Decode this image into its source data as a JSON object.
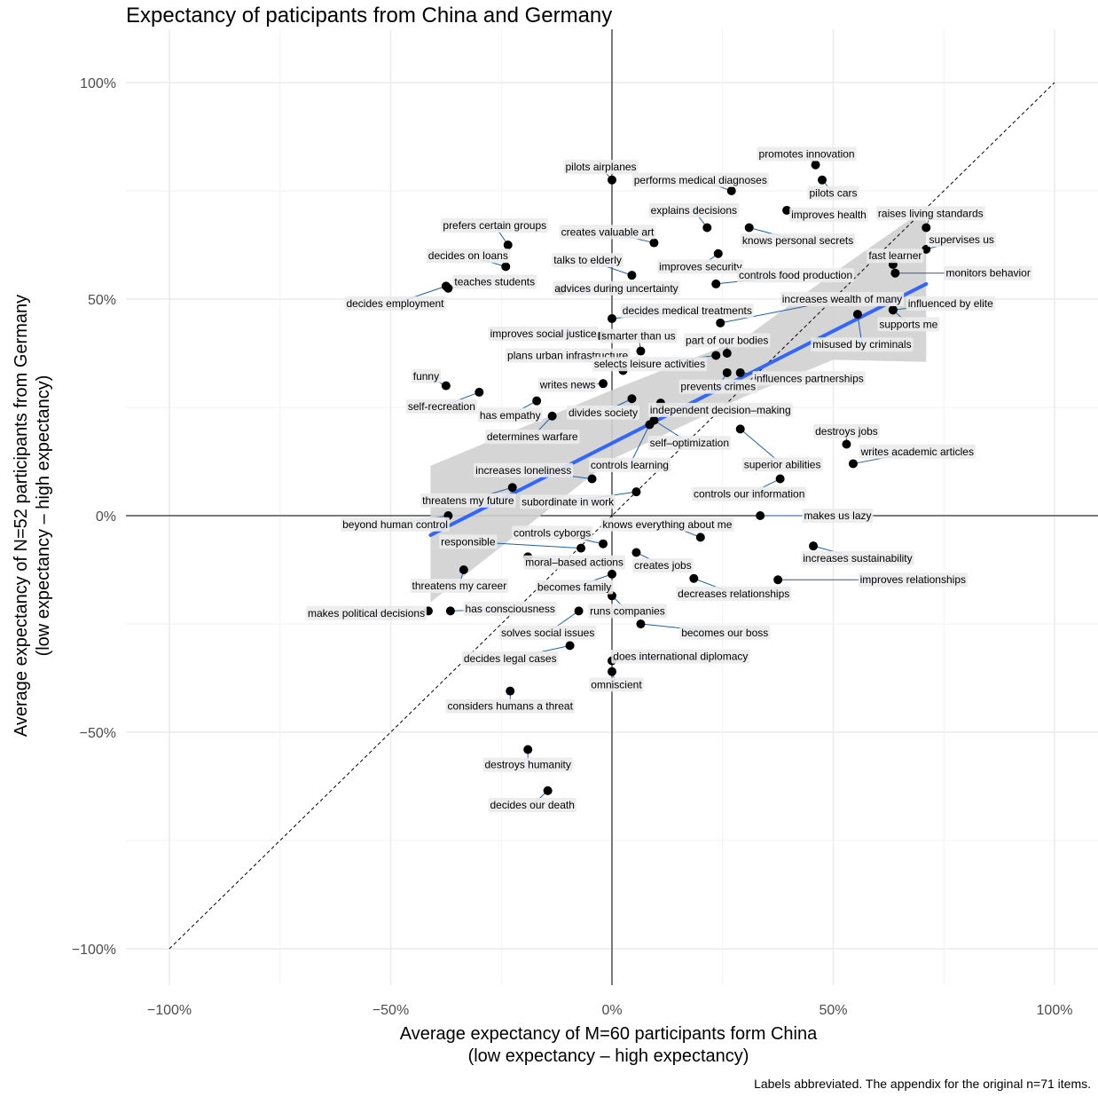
{
  "title": "Expectancy of paticipants from China and Germany",
  "footnote": "Labels abbreviated. The appendix for the original n=71 items.",
  "chart_data": {
    "type": "scatter",
    "xlabel_line1": "Average expectancy of M=60 participants form China",
    "xlabel_line2": "(low expectancy – high expectancy)",
    "ylabel_line1": "Average expectancy of N=52 participants from Germany",
    "ylabel_line2": "(low expectancy – high expectancy)",
    "xlim": [
      -1.1,
      1.1
    ],
    "ylim": [
      -1.1,
      1.05
    ],
    "x_ticks": [
      {
        "v": -1,
        "label": "−100%"
      },
      {
        "v": -0.5,
        "label": "−50%"
      },
      {
        "v": 0,
        "label": "0%"
      },
      {
        "v": 0.5,
        "label": "50%"
      },
      {
        "v": 1,
        "label": "100%"
      }
    ],
    "y_ticks": [
      {
        "v": 1,
        "label": "100%"
      },
      {
        "v": 0.5,
        "label": "50%"
      },
      {
        "v": 0,
        "label": "0%"
      },
      {
        "v": -0.5,
        "label": "−50%"
      },
      {
        "v": -1,
        "label": "−100%"
      }
    ],
    "grid": true,
    "identity_line": [
      [
        -1,
        -1
      ],
      [
        1,
        1
      ]
    ],
    "fit_line": {
      "x0": -0.41,
      "y0": -0.045,
      "x1": 0.71,
      "y1": 0.535
    },
    "confidence_band": {
      "upper": [
        [
          -0.41,
          0.115
        ],
        [
          0.0,
          0.29
        ],
        [
          0.3,
          0.41
        ],
        [
          0.5,
          0.56
        ],
        [
          0.71,
          0.71
        ]
      ],
      "lower": [
        [
          -0.41,
          -0.2
        ],
        [
          0.0,
          0.13
        ],
        [
          0.3,
          0.275
        ],
        [
          0.5,
          0.36
        ],
        [
          0.71,
          0.355
        ]
      ]
    },
    "points": [
      {
        "label": "promotes innovation",
        "x": 0.46,
        "y": 0.81,
        "lx": 0.44,
        "ly": 0.835
      },
      {
        "label": "pilots cars",
        "x": 0.475,
        "y": 0.775,
        "lx": 0.5,
        "ly": 0.745
      },
      {
        "label": "pilots airplanes",
        "x": 0.0,
        "y": 0.775,
        "lx": -0.025,
        "ly": 0.805
      },
      {
        "label": "performs medical diagnoses",
        "x": 0.27,
        "y": 0.75,
        "lx": 0.2,
        "ly": 0.775
      },
      {
        "label": "improves health",
        "x": 0.395,
        "y": 0.705,
        "lx": 0.49,
        "ly": 0.695
      },
      {
        "label": "raises living standards",
        "x": 0.71,
        "y": 0.665,
        "lx": 0.72,
        "ly": 0.698
      },
      {
        "label": "explains decisions",
        "x": 0.215,
        "y": 0.665,
        "lx": 0.185,
        "ly": 0.705
      },
      {
        "label": "knows personal secrets",
        "x": 0.31,
        "y": 0.665,
        "lx": 0.42,
        "ly": 0.635
      },
      {
        "label": "supervises us",
        "x": 0.71,
        "y": 0.615,
        "lx": 0.79,
        "ly": 0.637
      },
      {
        "label": "prefers certain groups",
        "x": -0.235,
        "y": 0.625,
        "lx": -0.265,
        "ly": 0.67
      },
      {
        "label": "creates valuable art",
        "x": 0.095,
        "y": 0.63,
        "lx": -0.01,
        "ly": 0.655
      },
      {
        "label": "decides on loans",
        "x": -0.24,
        "y": 0.575,
        "lx": -0.325,
        "ly": 0.6
      },
      {
        "label": "talks to elderly",
        "x": 0.045,
        "y": 0.555,
        "lx": -0.055,
        "ly": 0.59
      },
      {
        "label": "improves security",
        "x": 0.24,
        "y": 0.605,
        "lx": 0.2,
        "ly": 0.575
      },
      {
        "label": "fast learner",
        "x": 0.635,
        "y": 0.58,
        "lx": 0.64,
        "ly": 0.6
      },
      {
        "label": "monitors behavior",
        "x": 0.64,
        "y": 0.56,
        "lx": 0.85,
        "ly": 0.56
      },
      {
        "label": "controls food production",
        "x": 0.235,
        "y": 0.535,
        "lx": 0.415,
        "ly": 0.555
      },
      {
        "label": "teaches students",
        "x": -0.37,
        "y": 0.525,
        "lx": -0.265,
        "ly": 0.54
      },
      {
        "label": "advices during uncertainty",
        "x": -0.115,
        "y": 0.52,
        "lx": 0.01,
        "ly": 0.525
      },
      {
        "label": "decides employment",
        "x": -0.375,
        "y": 0.53,
        "lx": -0.49,
        "ly": 0.49
      },
      {
        "label": "increases wealth of many",
        "x": 0.245,
        "y": 0.445,
        "lx": 0.52,
        "ly": 0.5
      },
      {
        "label": "decides medical treatments",
        "x": 0.0,
        "y": 0.455,
        "lx": 0.17,
        "ly": 0.473
      },
      {
        "label": "influenced by elite",
        "x": 0.635,
        "y": 0.475,
        "lx": 0.765,
        "ly": 0.49
      },
      {
        "label": "supports me",
        "x": 0.635,
        "y": 0.475,
        "lx": 0.67,
        "ly": 0.442
      },
      {
        "label": "misused by criminals",
        "x": 0.555,
        "y": 0.465,
        "lx": 0.565,
        "ly": 0.395
      },
      {
        "label": "improves social justice",
        "x": -0.025,
        "y": 0.415,
        "lx": -0.155,
        "ly": 0.42
      },
      {
        "label": "smarter than us",
        "x": 0.065,
        "y": 0.38,
        "lx": 0.06,
        "ly": 0.415
      },
      {
        "label": "part of our bodies",
        "x": 0.26,
        "y": 0.375,
        "lx": 0.26,
        "ly": 0.405
      },
      {
        "label": "plans urban infrastructure",
        "x": 0.025,
        "y": 0.335,
        "lx": -0.1,
        "ly": 0.37
      },
      {
        "label": "selects leisure activities",
        "x": 0.235,
        "y": 0.37,
        "lx": 0.085,
        "ly": 0.35
      },
      {
        "label": "influences partnerships",
        "x": 0.29,
        "y": 0.33,
        "lx": 0.445,
        "ly": 0.317
      },
      {
        "label": "prevents crimes",
        "x": 0.26,
        "y": 0.33,
        "lx": 0.24,
        "ly": 0.298
      },
      {
        "label": "funny",
        "x": -0.375,
        "y": 0.3,
        "lx": -0.42,
        "ly": 0.322
      },
      {
        "label": "writes news",
        "x": -0.02,
        "y": 0.305,
        "lx": -0.1,
        "ly": 0.302
      },
      {
        "label": "self-recreation",
        "x": -0.3,
        "y": 0.285,
        "lx": -0.385,
        "ly": 0.252
      },
      {
        "label": "has empathy",
        "x": -0.17,
        "y": 0.265,
        "lx": -0.23,
        "ly": 0.232
      },
      {
        "label": "divides society",
        "x": 0.045,
        "y": 0.27,
        "lx": -0.02,
        "ly": 0.238
      },
      {
        "label": "independent decision–making",
        "x": 0.11,
        "y": 0.26,
        "lx": 0.245,
        "ly": 0.244
      },
      {
        "label": "determines warfare",
        "x": -0.135,
        "y": 0.23,
        "lx": -0.18,
        "ly": 0.182
      },
      {
        "label": "self–optimization",
        "x": 0.095,
        "y": 0.22,
        "lx": 0.175,
        "ly": 0.168
      },
      {
        "label": "destroys jobs",
        "x": 0.53,
        "y": 0.165,
        "lx": 0.53,
        "ly": 0.195
      },
      {
        "label": "controls learning",
        "x": 0.085,
        "y": 0.21,
        "lx": 0.04,
        "ly": 0.117
      },
      {
        "label": "writes academic articles",
        "x": 0.545,
        "y": 0.12,
        "lx": 0.69,
        "ly": 0.148
      },
      {
        "label": "superior abilities",
        "x": 0.29,
        "y": 0.2,
        "lx": 0.385,
        "ly": 0.118
      },
      {
        "label": "increases loneliness",
        "x": -0.045,
        "y": 0.085,
        "lx": -0.2,
        "ly": 0.105
      },
      {
        "label": "controls our information",
        "x": 0.38,
        "y": 0.085,
        "lx": 0.31,
        "ly": 0.05
      },
      {
        "label": "threatens my future",
        "x": -0.225,
        "y": 0.065,
        "lx": -0.325,
        "ly": 0.035
      },
      {
        "label": "subordinate in work",
        "x": 0.055,
        "y": 0.055,
        "lx": -0.1,
        "ly": 0.032
      },
      {
        "label": "beyond human control",
        "x": -0.37,
        "y": 0.0,
        "lx": -0.49,
        "ly": -0.02
      },
      {
        "label": "makes us lazy",
        "x": 0.335,
        "y": 0.0,
        "lx": 0.51,
        "ly": 0.0
      },
      {
        "label": "knows everything about me",
        "x": 0.2,
        "y": -0.05,
        "lx": 0.125,
        "ly": -0.02
      },
      {
        "label": "responsible",
        "x": -0.07,
        "y": -0.075,
        "lx": -0.325,
        "ly": -0.06
      },
      {
        "label": "controls cyborgs",
        "x": -0.02,
        "y": -0.065,
        "lx": -0.135,
        "ly": -0.04
      },
      {
        "label": "increases sustainability",
        "x": 0.455,
        "y": -0.07,
        "lx": 0.555,
        "ly": -0.098
      },
      {
        "label": "moral–based actions",
        "x": -0.19,
        "y": -0.095,
        "lx": -0.085,
        "ly": -0.108
      },
      {
        "label": "creates jobs",
        "x": 0.055,
        "y": -0.085,
        "lx": 0.115,
        "ly": -0.115
      },
      {
        "label": "threatens my career",
        "x": -0.335,
        "y": -0.125,
        "lx": -0.345,
        "ly": -0.162
      },
      {
        "label": "becomes family",
        "x": 0.0,
        "y": -0.135,
        "lx": -0.085,
        "ly": -0.165
      },
      {
        "label": "decreases relationships",
        "x": 0.185,
        "y": -0.145,
        "lx": 0.275,
        "ly": -0.18
      },
      {
        "label": "improves relationships",
        "x": 0.375,
        "y": -0.148,
        "lx": 0.68,
        "ly": -0.148
      },
      {
        "label": "runs companies",
        "x": 0.0,
        "y": -0.185,
        "lx": 0.035,
        "ly": -0.22
      },
      {
        "label": "makes political decisions",
        "x": -0.415,
        "y": -0.22,
        "lx": -0.555,
        "ly": -0.225
      },
      {
        "label": "has consciousness",
        "x": -0.365,
        "y": -0.22,
        "lx": -0.23,
        "ly": -0.215
      },
      {
        "label": "solves social issues",
        "x": -0.075,
        "y": -0.22,
        "lx": -0.145,
        "ly": -0.27
      },
      {
        "label": "becomes our boss",
        "x": 0.065,
        "y": -0.25,
        "lx": 0.255,
        "ly": -0.27
      },
      {
        "label": "decides legal cases",
        "x": -0.095,
        "y": -0.3,
        "lx": -0.23,
        "ly": -0.33
      },
      {
        "label": "does international diplomacy",
        "x": 0.0,
        "y": -0.335,
        "lx": 0.155,
        "ly": -0.325
      },
      {
        "label": "omniscient",
        "x": 0.0,
        "y": -0.36,
        "lx": 0.01,
        "ly": -0.39
      },
      {
        "label": "considers humans a threat",
        "x": -0.23,
        "y": -0.405,
        "lx": -0.23,
        "ly": -0.44
      },
      {
        "label": "destroys humanity",
        "x": -0.19,
        "y": -0.54,
        "lx": -0.19,
        "ly": -0.575
      },
      {
        "label": "decides our death",
        "x": -0.145,
        "y": -0.635,
        "lx": -0.18,
        "ly": -0.668
      }
    ]
  }
}
